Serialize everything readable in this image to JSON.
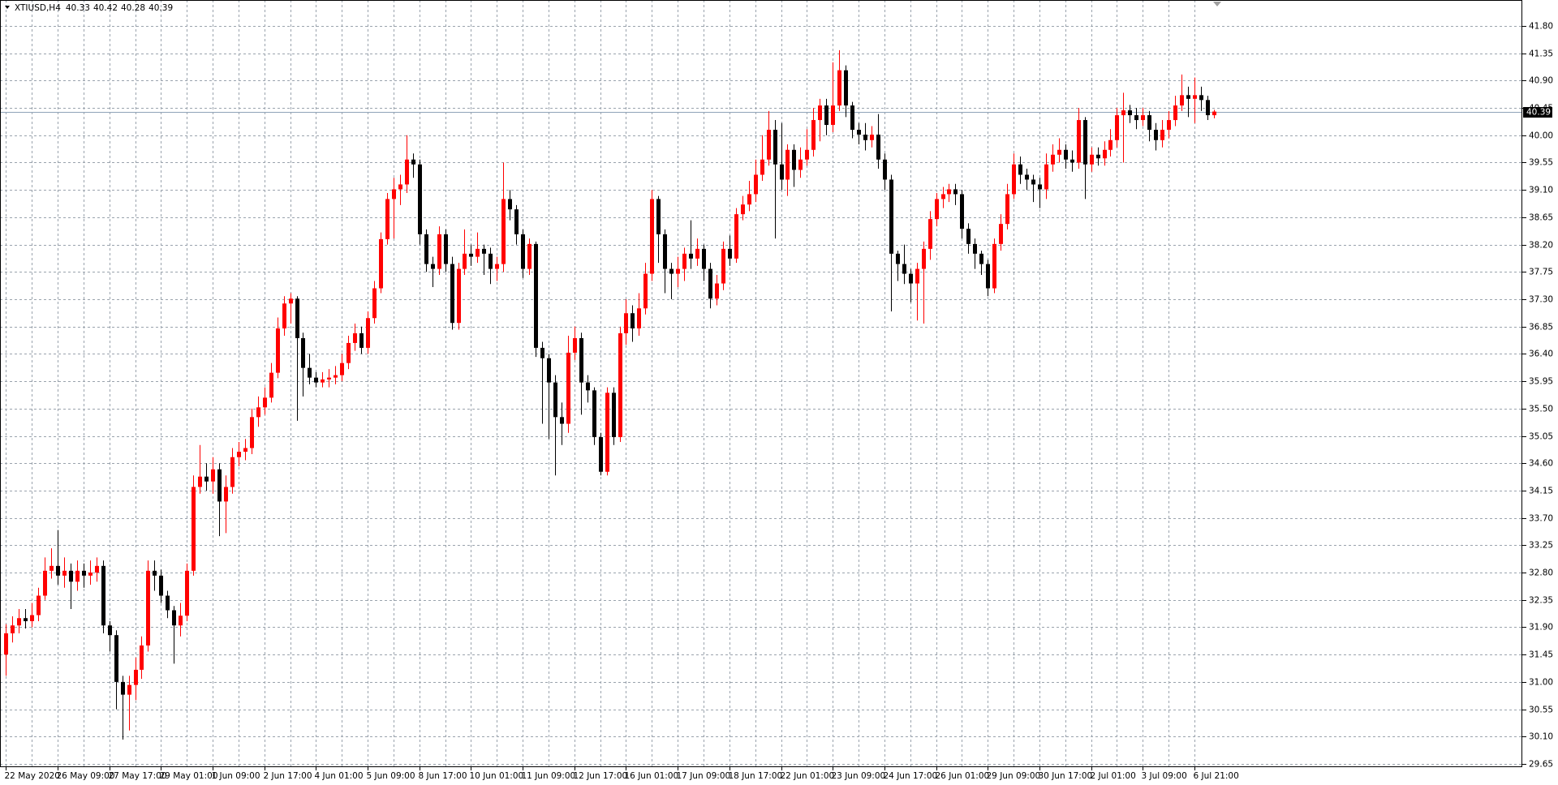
{
  "chart_data": {
    "type": "candlestick",
    "symbol": "XTIUSD,H4",
    "up_color": "#ff0000",
    "down_color": "#000000",
    "bid_line_color": "#8fa3b8",
    "grid": true,
    "ylim": [
      29.61,
      42.16
    ],
    "yticks": [
      {
        "value": 41.8,
        "label": "41.80"
      },
      41.35,
      {
        "value": 40.9,
        "label": "40.90"
      },
      40.45,
      {
        "value": 40,
        "label": "40.00"
      },
      39.55,
      {
        "value": 39.1,
        "label": "39.10"
      },
      38.65,
      {
        "value": 38.2,
        "label": "38.20"
      },
      37.75,
      {
        "value": 37.3,
        "label": "37.30"
      },
      36.85,
      {
        "value": 36.4,
        "label": "36.40"
      },
      35.95,
      {
        "value": 35.5,
        "label": "35.50"
      },
      35.05,
      {
        "value": 34.6,
        "label": "34.60"
      },
      34.15,
      {
        "value": 33.7,
        "label": "33.70"
      },
      33.25,
      {
        "value": 32.8,
        "label": "32.80"
      },
      32.35,
      {
        "value": 31.9,
        "label": "31.90"
      },
      31.45,
      {
        "value": 31,
        "label": "31.00"
      },
      30.55,
      {
        "value": 30.1,
        "label": "30.10"
      },
      29.65
    ],
    "categories": [
      "22 May 2020",
      null,
      null,
      null,
      null,
      null,
      null,
      null,
      "26 May 09:00",
      null,
      null,
      null,
      null,
      null,
      null,
      null,
      "27 May 17:00",
      null,
      null,
      null,
      null,
      null,
      null,
      null,
      "29 May 01:00",
      null,
      null,
      null,
      null,
      null,
      null,
      null,
      "1 Jun 09:00",
      null,
      null,
      null,
      null,
      null,
      null,
      null,
      "2 Jun 17:00",
      null,
      null,
      null,
      null,
      null,
      null,
      null,
      "4 Jun 01:00",
      null,
      null,
      null,
      null,
      null,
      null,
      null,
      "5 Jun 09:00",
      null,
      null,
      null,
      null,
      null,
      null,
      null,
      "8 Jun 17:00",
      null,
      null,
      null,
      null,
      null,
      null,
      null,
      "10 Jun 01:00",
      null,
      null,
      null,
      null,
      null,
      null,
      null,
      "11 Jun 09:00",
      null,
      null,
      null,
      null,
      null,
      null,
      null,
      "12 Jun 17:00",
      null,
      null,
      null,
      null,
      null,
      null,
      null,
      "16 Jun 01:00",
      null,
      null,
      null,
      null,
      null,
      null,
      null,
      "17 Jun 09:00",
      null,
      null,
      null,
      null,
      null,
      null,
      null,
      "18 Jun 17:00",
      null,
      null,
      null,
      null,
      null,
      null,
      null,
      "22 Jun 01:00",
      null,
      null,
      null,
      null,
      null,
      null,
      null,
      "23 Jun 09:00",
      null,
      null,
      null,
      null,
      null,
      null,
      null,
      "24 Jun 17:00",
      null,
      null,
      null,
      null,
      null,
      null,
      null,
      "26 Jun 01:00",
      null,
      null,
      null,
      null,
      null,
      null,
      null,
      "29 Jun 09:00",
      null,
      null,
      null,
      null,
      null,
      null,
      null,
      "30 Jun 17:00",
      null,
      null,
      null,
      null,
      null,
      null,
      null,
      "2 Jul 01:00",
      null,
      null,
      null,
      null,
      null,
      null,
      null,
      "3 Jul 09:00",
      null,
      null,
      null,
      null,
      null,
      null,
      null,
      "6 Jul 21:00",
      null,
      null,
      null
    ],
    "open": [
      31.45,
      31.8,
      31.93,
      32.05,
      32.0,
      32.1,
      32.42,
      32.83,
      32.91,
      32.75,
      32.83,
      32.65,
      32.83,
      32.75,
      32.8,
      32.91,
      31.93,
      31.77,
      31.0,
      30.79,
      30.95,
      31.2,
      31.6,
      32.83,
      32.75,
      32.42,
      32.18,
      31.93,
      32.09,
      32.83,
      34.21,
      34.38,
      34.3,
      34.5,
      33.97,
      34.21,
      34.7,
      34.79,
      34.85,
      35.36,
      35.52,
      35.68,
      36.09,
      36.82,
      37.23,
      37.31,
      36.66,
      36.17,
      36.01,
      35.93,
      35.98,
      36.01,
      36.05,
      36.25,
      36.58,
      36.74,
      36.5,
      36.99,
      37.48,
      38.29,
      38.95,
      39.11,
      39.19,
      39.6,
      39.52,
      38.37,
      37.88,
      37.8,
      38.37,
      37.88,
      36.91,
      37.8,
      38.05,
      38.0,
      38.13,
      38.05,
      37.8,
      37.88,
      38.95,
      38.78,
      38.37,
      37.8,
      38.21,
      36.5,
      36.33,
      35.93,
      35.36,
      35.25,
      36.42,
      36.66,
      35.93,
      35.8,
      35.03,
      34.46,
      35.76,
      35.03,
      36.74,
      37.07,
      36.82,
      37.15,
      37.72,
      38.95,
      38.37,
      37.8,
      37.72,
      37.8,
      38.05,
      37.97,
      38.13,
      37.8,
      37.31,
      37.56,
      38.13,
      37.97,
      38.7,
      38.86,
      39.03,
      39.35,
      39.6,
      40.09,
      39.52,
      39.27,
      39.76,
      39.43,
      39.6,
      39.76,
      40.25,
      40.49,
      40.17,
      40.49,
      41.07,
      40.49,
      40.09,
      40.01,
      39.92,
      40.01,
      39.6,
      39.27,
      38.05,
      37.88,
      37.72,
      37.56,
      37.8,
      38.13,
      38.62,
      38.95,
      39.03,
      39.11,
      39.03,
      38.46,
      38.21,
      38.05,
      37.88,
      37.48,
      38.21,
      38.54,
      39.03,
      39.52,
      39.35,
      39.27,
      39.19,
      39.11,
      39.52,
      39.68,
      39.76,
      39.6,
      39.55,
      40.25,
      39.52,
      39.68,
      39.62,
      39.76,
      39.92,
      40.33,
      40.41,
      40.33,
      40.25,
      40.33,
      40.09,
      39.92,
      40.09,
      40.25,
      40.49,
      40.66,
      40.6,
      40.66,
      40.58,
      40.33
    ],
    "high": [
      31.95,
      32.08,
      32.2,
      32.2,
      32.3,
      32.55,
      33.05,
      33.2,
      33.5,
      33.05,
      32.95,
      33.0,
      32.95,
      33.0,
      33.05,
      33.0,
      32.0,
      31.85,
      31.1,
      31.1,
      31.4,
      31.75,
      33.0,
      33.0,
      32.85,
      32.5,
      32.25,
      32.3,
      32.95,
      34.4,
      34.9,
      34.6,
      34.7,
      34.6,
      34.4,
      34.85,
      34.95,
      35.0,
      35.5,
      35.7,
      35.85,
      36.25,
      37.0,
      37.35,
      37.4,
      37.35,
      36.75,
      36.4,
      36.1,
      36.1,
      36.15,
      36.2,
      36.4,
      36.7,
      36.9,
      36.85,
      37.1,
      37.6,
      38.4,
      39.05,
      39.3,
      39.35,
      40.0,
      39.7,
      39.6,
      38.45,
      38.0,
      38.5,
      38.45,
      38.0,
      37.9,
      38.45,
      38.2,
      38.4,
      38.2,
      38.15,
      38.0,
      39.55,
      39.1,
      38.85,
      38.45,
      38.3,
      38.25,
      36.6,
      36.4,
      36.05,
      35.6,
      36.7,
      36.85,
      36.75,
      36.05,
      35.85,
      35.1,
      35.85,
      35.85,
      36.85,
      37.3,
      37.2,
      37.4,
      37.9,
      39.1,
      39.0,
      38.45,
      37.9,
      38.0,
      38.15,
      38.6,
      38.3,
      38.2,
      37.9,
      37.7,
      38.25,
      38.35,
      38.8,
      39.0,
      39.25,
      39.6,
      40.0,
      40.4,
      40.25,
      40.2,
      39.85,
      39.85,
      39.8,
      40.1,
      40.45,
      40.6,
      40.6,
      41.2,
      41.4,
      41.15,
      40.55,
      40.2,
      40.2,
      40.15,
      40.35,
      39.7,
      39.35,
      38.1,
      38.2,
      37.8,
      37.9,
      38.25,
      38.75,
      39.05,
      39.15,
      39.2,
      39.2,
      39.1,
      38.55,
      38.3,
      38.1,
      37.95,
      38.3,
      38.7,
      39.2,
      39.7,
      39.65,
      39.45,
      39.35,
      39.3,
      39.7,
      39.85,
      39.95,
      39.85,
      39.75,
      40.45,
      40.3,
      39.8,
      39.8,
      39.9,
      40.1,
      40.45,
      40.7,
      40.5,
      40.45,
      40.45,
      40.4,
      40.2,
      40.25,
      40.4,
      40.65,
      41.0,
      40.8,
      40.95,
      40.8,
      40.65,
      40.42
    ],
    "low": [
      31.1,
      31.65,
      31.8,
      31.88,
      31.9,
      32.0,
      32.35,
      32.7,
      32.6,
      32.55,
      32.2,
      32.5,
      32.55,
      32.6,
      32.65,
      31.8,
      31.5,
      30.55,
      30.05,
      30.2,
      30.7,
      31.05,
      31.5,
      32.5,
      32.3,
      32.05,
      31.3,
      31.75,
      32.0,
      32.75,
      34.1,
      34.15,
      34.1,
      33.4,
      33.45,
      34.1,
      34.55,
      34.65,
      34.75,
      35.2,
      35.4,
      35.6,
      36.0,
      36.7,
      36.9,
      35.3,
      35.7,
      35.9,
      35.85,
      35.85,
      35.85,
      35.9,
      35.95,
      36.15,
      36.45,
      36.4,
      36.4,
      36.9,
      37.4,
      38.2,
      38.3,
      38.85,
      39.05,
      39.3,
      38.2,
      37.75,
      37.5,
      37.7,
      37.75,
      36.8,
      36.8,
      37.7,
      37.85,
      37.9,
      37.7,
      37.55,
      37.6,
      37.75,
      38.6,
      38.2,
      37.65,
      37.7,
      36.35,
      35.25,
      35.0,
      34.4,
      34.9,
      35.1,
      36.3,
      35.4,
      35.6,
      34.9,
      34.4,
      34.4,
      34.9,
      34.95,
      36.55,
      36.6,
      36.7,
      37.05,
      37.6,
      37.9,
      37.4,
      37.3,
      37.5,
      37.6,
      37.8,
      37.85,
      37.6,
      37.15,
      37.2,
      37.45,
      37.85,
      37.9,
      38.6,
      38.75,
      38.9,
      39.25,
      39.5,
      38.3,
      39.1,
      39.0,
      39.15,
      39.3,
      39.5,
      39.65,
      39.9,
      40.0,
      40.05,
      40.4,
      40.3,
      39.95,
      39.85,
      39.75,
      39.8,
      39.45,
      39.1,
      37.1,
      37.6,
      37.55,
      37.25,
      36.95,
      36.9,
      37.95,
      38.5,
      38.8,
      38.9,
      38.85,
      38.3,
      38.05,
      37.8,
      37.7,
      37.35,
      37.4,
      38.1,
      38.45,
      38.95,
      39.2,
      39.1,
      38.9,
      38.8,
      38.95,
      39.4,
      39.55,
      39.45,
      39.4,
      39.45,
      38.95,
      39.4,
      39.5,
      39.5,
      39.65,
      39.8,
      39.55,
      40.2,
      40.1,
      40.15,
      39.9,
      39.75,
      39.8,
      39.95,
      40.15,
      40.4,
      40.3,
      40.2,
      40.4,
      40.25,
      40.28
    ],
    "close": [
      31.8,
      31.93,
      32.05,
      32.0,
      32.1,
      32.42,
      32.83,
      32.91,
      32.75,
      32.83,
      32.65,
      32.83,
      32.75,
      32.8,
      32.91,
      31.93,
      31.77,
      31.0,
      30.79,
      30.95,
      31.2,
      31.6,
      32.83,
      32.75,
      32.42,
      32.18,
      31.93,
      32.09,
      32.83,
      34.21,
      34.38,
      34.3,
      34.5,
      33.97,
      34.21,
      34.7,
      34.79,
      34.85,
      35.36,
      35.52,
      35.68,
      36.09,
      36.82,
      37.23,
      37.31,
      36.66,
      36.17,
      36.01,
      35.93,
      35.98,
      36.01,
      36.05,
      36.25,
      36.58,
      36.74,
      36.5,
      36.99,
      37.48,
      38.29,
      38.95,
      39.11,
      39.19,
      39.6,
      39.52,
      38.37,
      37.88,
      37.8,
      38.37,
      37.88,
      36.91,
      37.8,
      38.05,
      38.0,
      38.13,
      38.05,
      37.8,
      37.88,
      38.95,
      38.78,
      38.37,
      37.8,
      38.21,
      36.5,
      36.33,
      35.93,
      35.36,
      35.25,
      36.42,
      36.66,
      35.93,
      35.8,
      35.03,
      34.46,
      35.76,
      35.03,
      36.74,
      37.07,
      36.82,
      37.15,
      37.72,
      38.95,
      38.37,
      37.8,
      37.72,
      37.8,
      38.05,
      37.97,
      38.13,
      37.8,
      37.31,
      37.56,
      38.13,
      37.97,
      38.7,
      38.86,
      39.03,
      39.35,
      39.6,
      40.09,
      39.52,
      39.27,
      39.76,
      39.43,
      39.6,
      39.76,
      40.25,
      40.49,
      40.17,
      40.49,
      41.07,
      40.49,
      40.09,
      40.01,
      39.92,
      40.01,
      39.6,
      39.27,
      38.05,
      37.88,
      37.72,
      37.56,
      37.8,
      38.13,
      38.62,
      38.95,
      39.03,
      39.11,
      39.03,
      38.46,
      38.21,
      38.05,
      37.88,
      37.48,
      38.21,
      38.54,
      39.03,
      39.52,
      39.35,
      39.27,
      39.19,
      39.11,
      39.52,
      39.68,
      39.76,
      39.6,
      39.55,
      40.25,
      39.52,
      39.68,
      39.62,
      39.76,
      39.92,
      40.33,
      40.41,
      40.33,
      40.25,
      40.33,
      40.09,
      39.92,
      40.09,
      40.25,
      40.49,
      40.66,
      40.6,
      40.66,
      40.58,
      40.33,
      40.39
    ]
  }
}
